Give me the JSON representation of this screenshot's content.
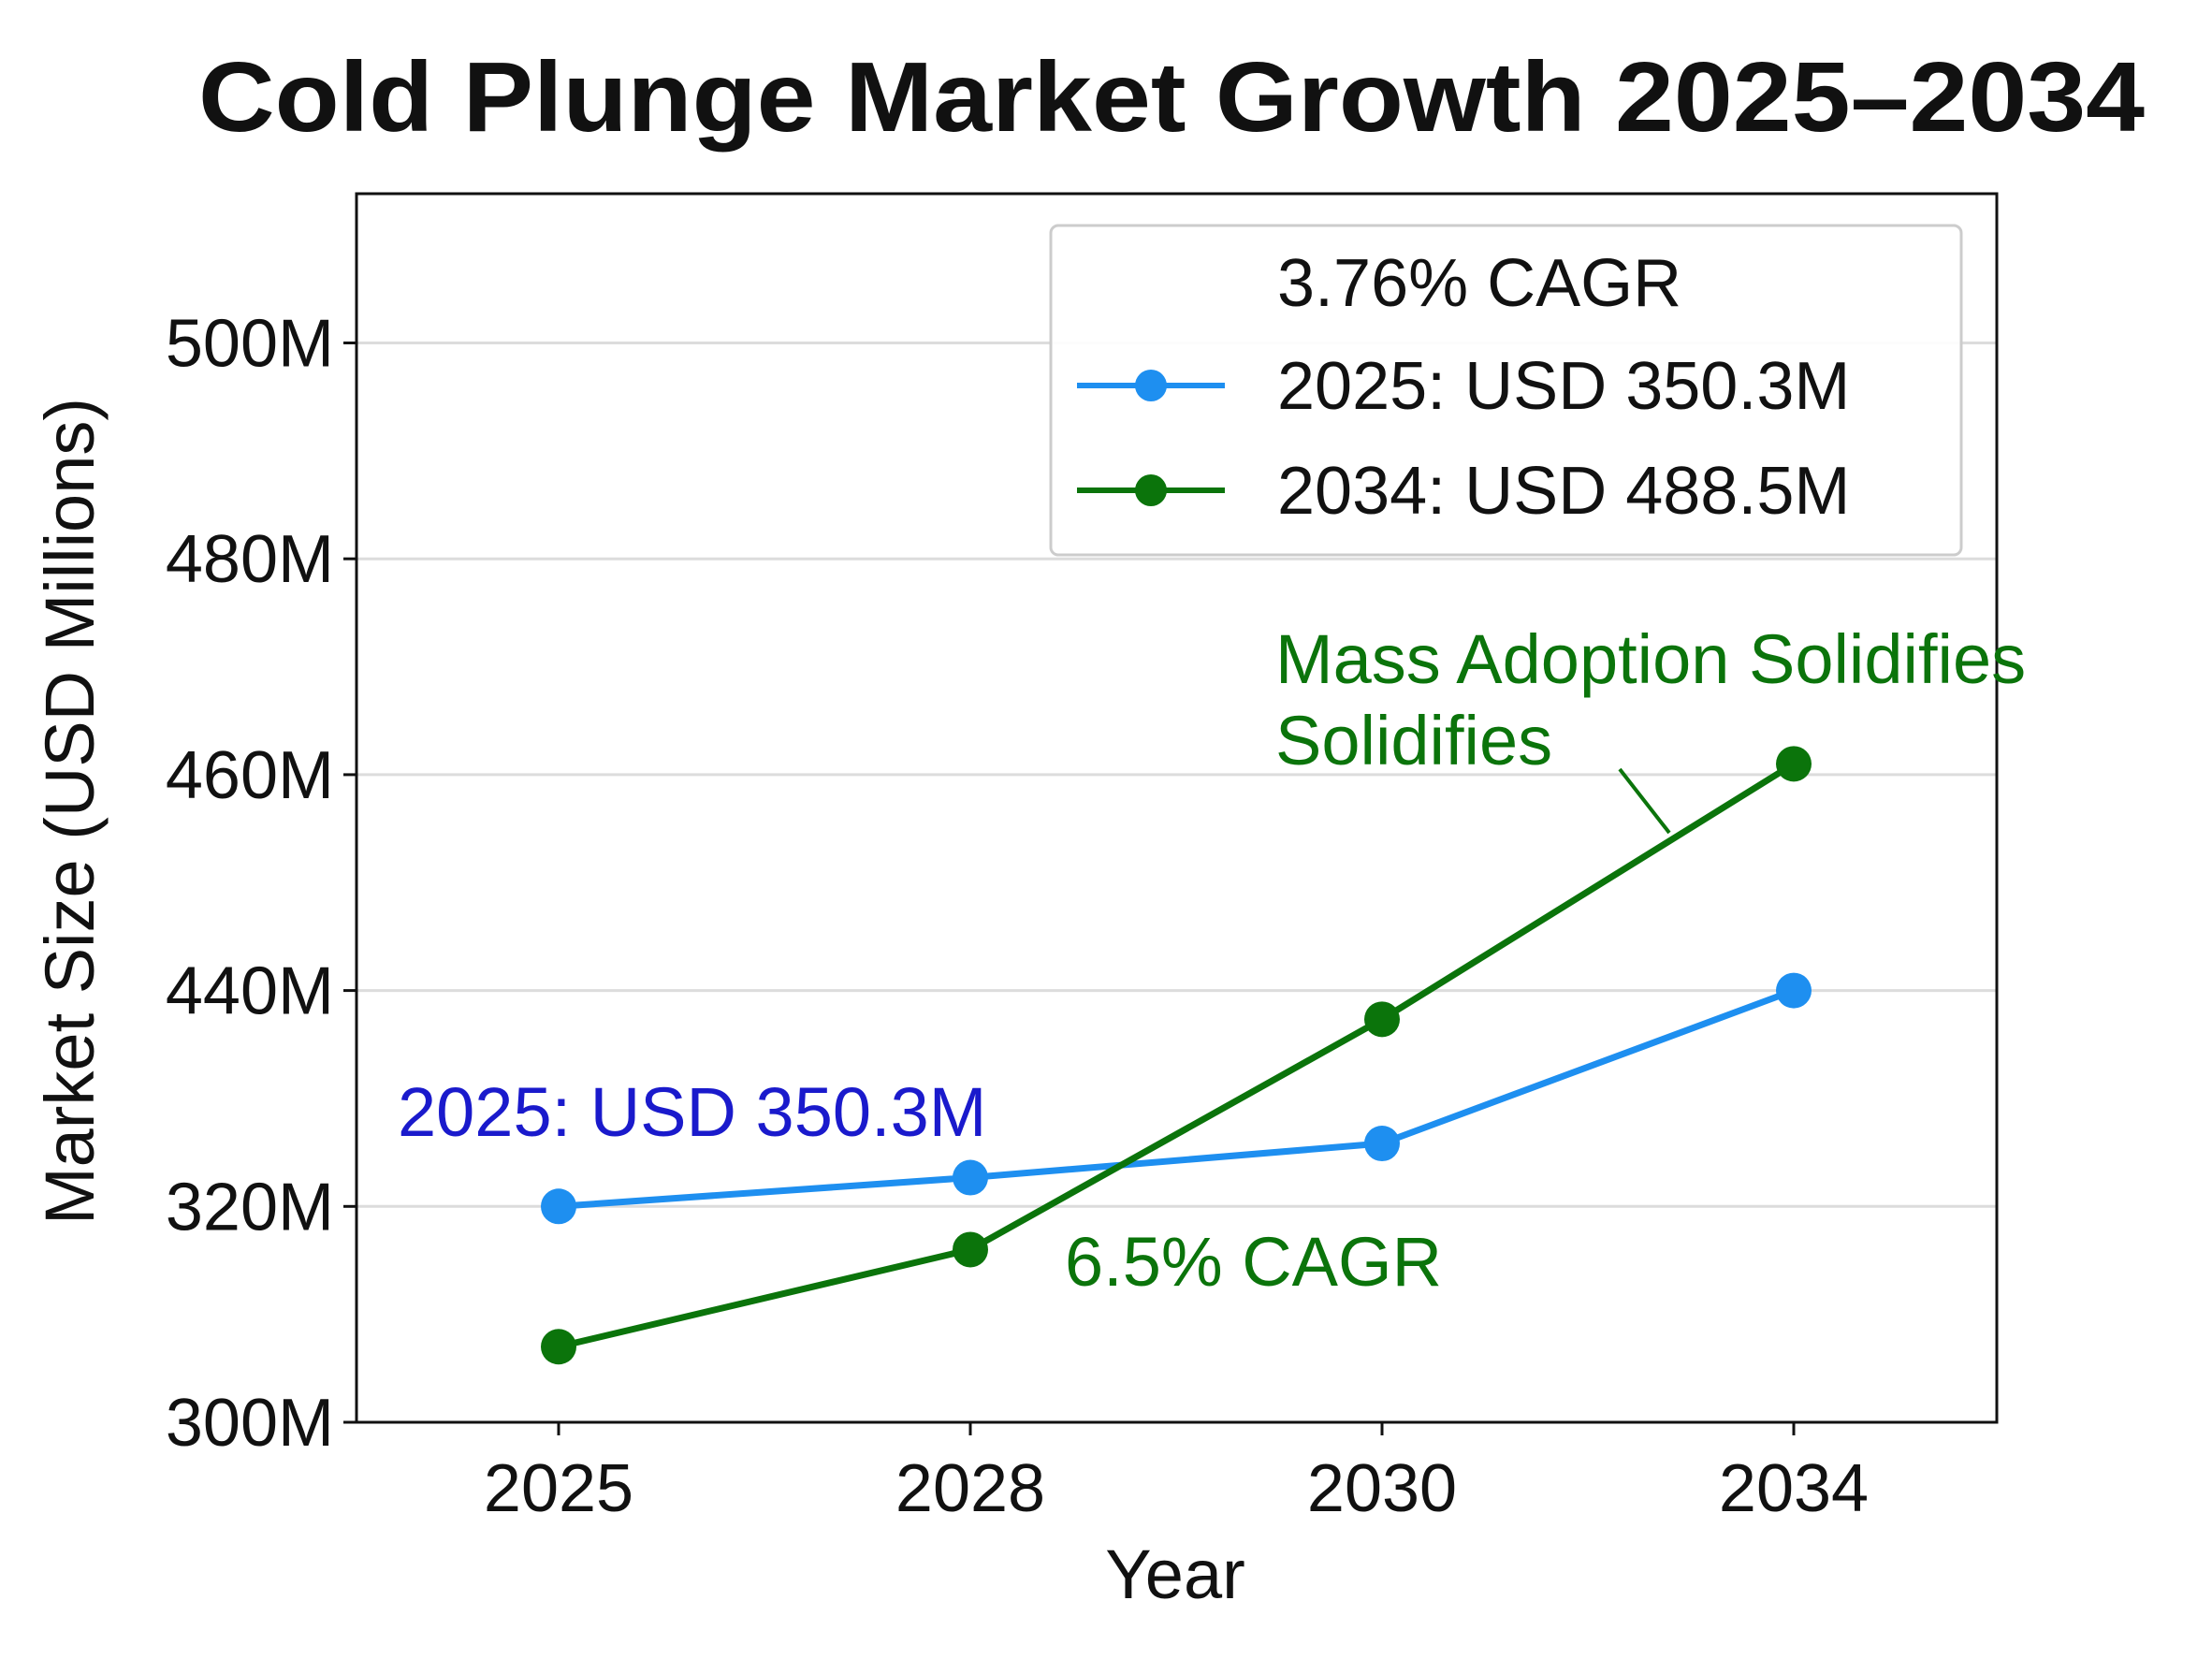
{
  "chart_data": {
    "type": "line",
    "title": "Cold Plunge Market Growth 2025–2034",
    "xlabel": "Year",
    "ylabel": "Market Size (USD Millions)",
    "categories": [
      "2025",
      "2028",
      "2030",
      "2034"
    ],
    "y_ticks": [
      {
        "value": 300,
        "label": "300M"
      },
      {
        "value": 320,
        "label": "320M"
      },
      {
        "value": 440,
        "label": "440M"
      },
      {
        "value": 460,
        "label": "460M"
      },
      {
        "value": 480,
        "label": "480M"
      },
      {
        "value": 500,
        "label": "500M"
      }
    ],
    "y_scale": "non-uniform (tick labels evenly spaced)",
    "ylim": [
      300,
      514
    ],
    "grid": "horizontal",
    "legend": {
      "placement": "top-right",
      "title": "3.76% CAGR",
      "entries": [
        "2025: USD 350.3M",
        "2034: USD 488.5M"
      ]
    },
    "series": [
      {
        "name": "2025: USD 350.3M",
        "color": "#1e8ff0",
        "values": [
          320,
          336,
          355,
          440
        ]
      },
      {
        "name": "2034: USD 488.5M",
        "color": "#0b740b",
        "values": [
          307,
          316,
          424,
          461
        ]
      }
    ],
    "annotations": [
      {
        "text": "2025: USD 350.3M",
        "color": "#1a1acc"
      },
      {
        "text": "6.5% CAGR",
        "color": "#0b740b"
      },
      {
        "text": "Mass Adoption Solidifies",
        "color": "#0b740b"
      },
      {
        "text": "Solidifies",
        "color": "#0b740b"
      }
    ]
  }
}
